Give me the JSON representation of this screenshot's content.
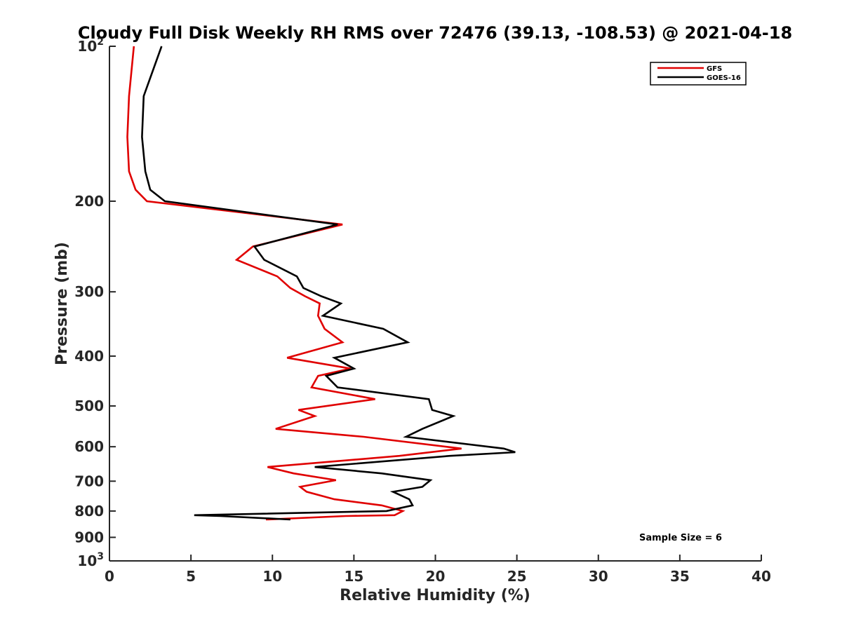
{
  "chart_data": {
    "type": "line",
    "title": "Cloudy Full Disk Weekly RH RMS over 72476 (39.13, -108.53) @ 2021-04-18",
    "xlabel": "Relative Humidity (%)",
    "ylabel": "Pressure (mb)",
    "xlim": [
      0,
      40
    ],
    "ylim": [
      100,
      1000
    ],
    "y_scale": "log",
    "y_reversed": true,
    "x_ticks": [
      "0",
      "5",
      "10",
      "15",
      "20",
      "25",
      "30",
      "35",
      "40"
    ],
    "y_ticks": [
      {
        "value": 100,
        "label": "10",
        "sup": "2"
      },
      {
        "value": 200,
        "label": "200",
        "sup": ""
      },
      {
        "value": 300,
        "label": "300",
        "sup": ""
      },
      {
        "value": 400,
        "label": "400",
        "sup": ""
      },
      {
        "value": 500,
        "label": "500",
        "sup": ""
      },
      {
        "value": 600,
        "label": "600",
        "sup": ""
      },
      {
        "value": 700,
        "label": "700",
        "sup": ""
      },
      {
        "value": 800,
        "label": "800",
        "sup": ""
      },
      {
        "value": 900,
        "label": "900",
        "sup": ""
      },
      {
        "value": 1000,
        "label": "10",
        "sup": "3"
      }
    ],
    "legend_position": "top-right",
    "annotation": "Sample Size = 6",
    "series": [
      {
        "name": "GFS",
        "color": "#e00000",
        "points": [
          [
            1.5,
            100
          ],
          [
            1.2,
            125
          ],
          [
            1.1,
            150
          ],
          [
            1.2,
            175
          ],
          [
            1.6,
            190
          ],
          [
            2.3,
            200
          ],
          [
            14.3,
            222
          ],
          [
            8.8,
            245
          ],
          [
            7.8,
            260
          ],
          [
            10.3,
            280
          ],
          [
            11.1,
            295
          ],
          [
            12.0,
            306
          ],
          [
            12.9,
            316
          ],
          [
            12.8,
            334
          ],
          [
            13.2,
            354
          ],
          [
            14.3,
            376
          ],
          [
            10.9,
            403
          ],
          [
            14.8,
            423
          ],
          [
            12.8,
            437
          ],
          [
            12.4,
            460
          ],
          [
            16.3,
            485
          ],
          [
            11.6,
            509
          ],
          [
            12.6,
            523
          ],
          [
            10.2,
            554
          ],
          [
            15.6,
            574
          ],
          [
            21.6,
            605
          ],
          [
            17.8,
            625
          ],
          [
            9.7,
            657
          ],
          [
            11.3,
            676
          ],
          [
            13.9,
            697
          ],
          [
            11.7,
            718
          ],
          [
            12.1,
            734
          ],
          [
            13.8,
            759
          ],
          [
            16.7,
            780
          ],
          [
            18.0,
            800
          ],
          [
            17.5,
            815
          ],
          [
            14.5,
            818
          ],
          [
            9.6,
            831
          ]
        ]
      },
      {
        "name": "GOES-16",
        "color": "#000000",
        "points": [
          [
            3.2,
            100
          ],
          [
            2.1,
            125
          ],
          [
            2.0,
            150
          ],
          [
            2.2,
            175
          ],
          [
            2.5,
            190
          ],
          [
            3.4,
            200
          ],
          [
            14.0,
            222
          ],
          [
            8.9,
            245
          ],
          [
            9.5,
            260
          ],
          [
            11.5,
            280
          ],
          [
            11.9,
            295
          ],
          [
            13.0,
            306
          ],
          [
            14.2,
            316
          ],
          [
            13.1,
            334
          ],
          [
            16.8,
            354
          ],
          [
            18.3,
            376
          ],
          [
            13.8,
            403
          ],
          [
            15.0,
            423
          ],
          [
            13.3,
            437
          ],
          [
            14.0,
            460
          ],
          [
            19.6,
            485
          ],
          [
            19.8,
            509
          ],
          [
            21.1,
            523
          ],
          [
            19.2,
            554
          ],
          [
            18.2,
            574
          ],
          [
            24.2,
            605
          ],
          [
            24.9,
            615
          ],
          [
            20.9,
            625
          ],
          [
            12.6,
            657
          ],
          [
            16.7,
            676
          ],
          [
            19.7,
            697
          ],
          [
            19.2,
            718
          ],
          [
            17.4,
            734
          ],
          [
            18.4,
            759
          ],
          [
            18.6,
            780
          ],
          [
            17.0,
            800
          ],
          [
            5.2,
            815
          ],
          [
            6.8,
            818
          ],
          [
            11.1,
            831
          ]
        ]
      }
    ]
  }
}
